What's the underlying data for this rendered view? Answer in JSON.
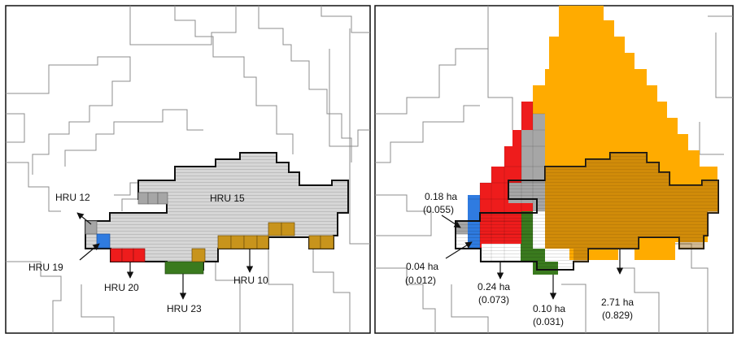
{
  "left_panel": {
    "labels": {
      "hru12": "HRU 12",
      "hru15": "HRU 15",
      "hru19": "HRU 19",
      "hru20": "HRU 20",
      "hru23": "HRU 23",
      "hru10": "HRU 10"
    }
  },
  "right_panel": {
    "annotations": {
      "a1_area": "0.18 ha",
      "a1_frac": "(0.055)",
      "a2_area": "0.04 ha",
      "a2_frac": "(0.012)",
      "a3_area": "0.24 ha",
      "a3_frac": "(0.073)",
      "a4_area": "0.10 ha",
      "a4_frac": "(0.031)",
      "a5_area": "2.71 ha",
      "a5_frac": "(0.829)"
    }
  },
  "colors": {
    "gray_hru": "#a6a6a6",
    "light_gray_hru": "#d9d9d9",
    "blue_hru": "#2f7be0",
    "red_hru": "#ee1c1c",
    "green_hru": "#3a7a1e",
    "brown_hru": "#c8941c",
    "orange_cell": "#ffab00"
  }
}
